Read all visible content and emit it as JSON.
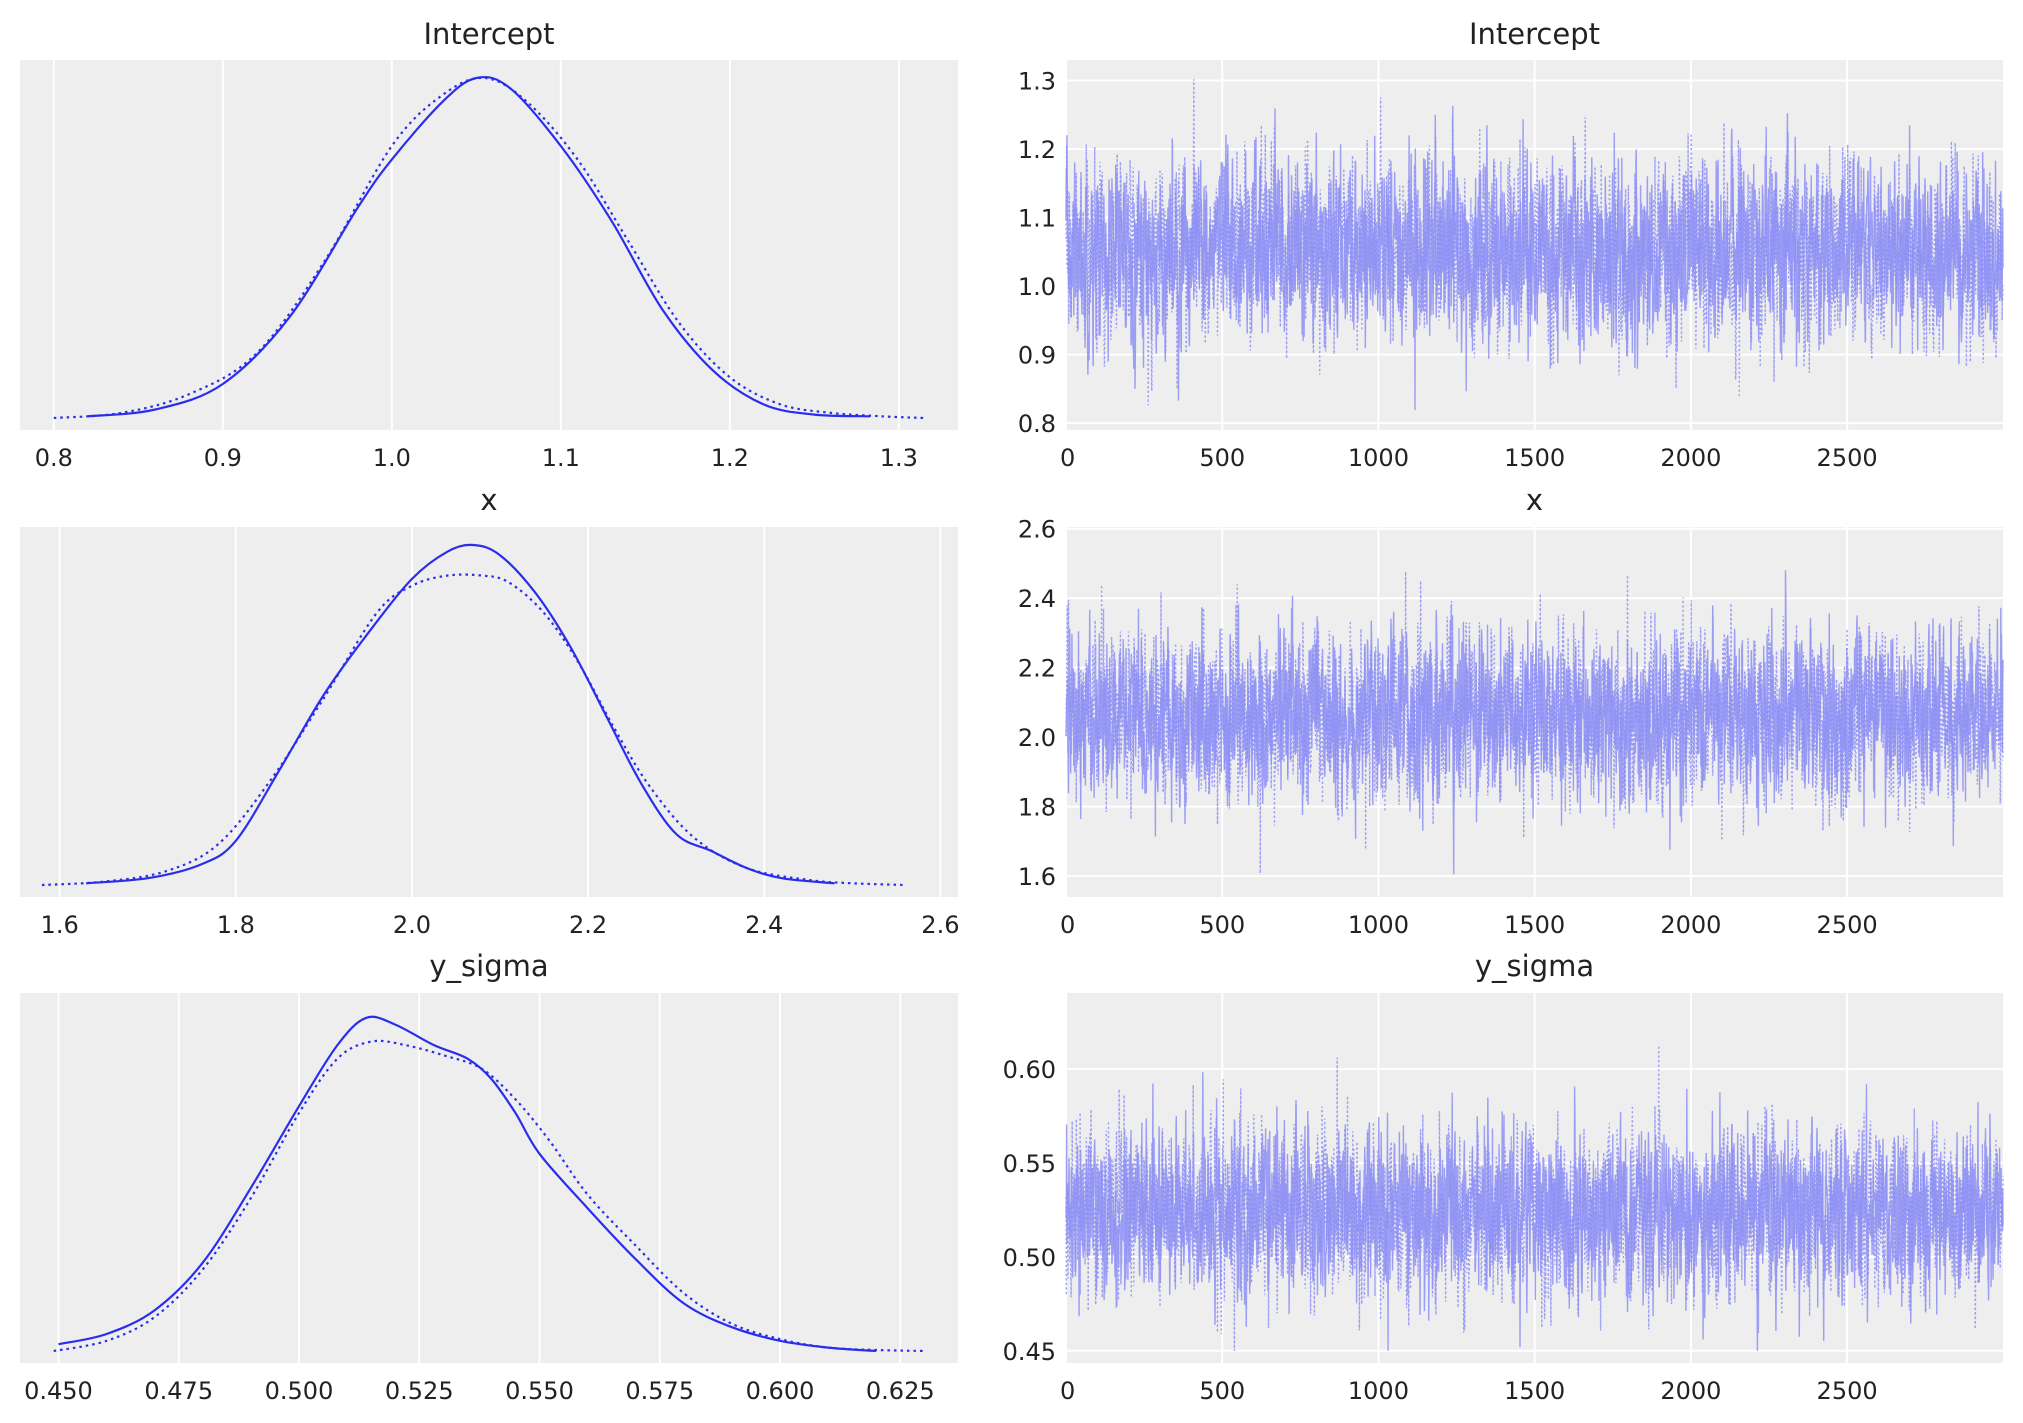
{
  "chart_data": [
    {
      "type": "line",
      "subtype": "density",
      "title": "Intercept",
      "xlim": [
        0.78,
        1.335
      ],
      "ticks": [
        "0.8",
        "0.9",
        "1.0",
        "1.1",
        "1.2",
        "1.3"
      ],
      "tick_values": [
        0.8,
        0.9,
        1.0,
        1.1,
        1.2,
        1.3
      ],
      "y_ticks_visible": false,
      "series": [
        {
          "style": "solid",
          "color": "#2a2eec",
          "x": [
            0.82,
            0.86,
            0.9,
            0.94,
            0.98,
            1.0,
            1.03,
            1.05,
            1.07,
            1.1,
            1.13,
            1.16,
            1.19,
            1.22,
            1.25,
            1.283
          ],
          "y": [
            0.005,
            0.025,
            0.1,
            0.3,
            0.62,
            0.76,
            0.93,
            1.0,
            0.97,
            0.8,
            0.58,
            0.32,
            0.14,
            0.04,
            0.01,
            0.005
          ]
        },
        {
          "style": "dotted",
          "color": "#2a2eec",
          "x": [
            0.8,
            0.84,
            0.88,
            0.92,
            0.96,
            1.0,
            1.03,
            1.055,
            1.08,
            1.11,
            1.14,
            1.17,
            1.2,
            1.23,
            1.26,
            1.29,
            1.315
          ],
          "y": [
            0.0,
            0.015,
            0.07,
            0.19,
            0.46,
            0.8,
            0.95,
            1.0,
            0.93,
            0.76,
            0.52,
            0.28,
            0.12,
            0.04,
            0.015,
            0.005,
            0.0
          ]
        }
      ]
    },
    {
      "type": "line",
      "subtype": "trace",
      "title": "Intercept",
      "xlim": [
        0,
        2999
      ],
      "ylim": [
        0.79,
        1.33
      ],
      "x_ticks": [
        "0",
        "500",
        "1000",
        "1500",
        "2000",
        "2500"
      ],
      "x_tick_values": [
        0,
        500,
        1000,
        1500,
        2000,
        2500
      ],
      "y_ticks": [
        "0.8",
        "0.9",
        "1.0",
        "1.1",
        "1.2",
        "1.3"
      ],
      "y_tick_values": [
        0.8,
        0.9,
        1.0,
        1.1,
        1.2,
        1.3
      ],
      "n_draws": 3000,
      "center": 1.05,
      "spread": 0.065,
      "range_observed": [
        0.8,
        1.31
      ],
      "series": [
        {
          "style": "solid",
          "color": "#8d8ff3"
        },
        {
          "style": "dotted",
          "color": "#8d8ff3"
        }
      ]
    },
    {
      "type": "line",
      "subtype": "density",
      "title": "x",
      "xlim": [
        1.555,
        2.62
      ],
      "ticks": [
        "1.6",
        "1.8",
        "2.0",
        "2.2",
        "2.4",
        "2.6"
      ],
      "tick_values": [
        1.6,
        1.8,
        2.0,
        2.2,
        2.4,
        2.6
      ],
      "y_ticks_visible": false,
      "series": [
        {
          "style": "solid",
          "color": "#2a2eec",
          "x": [
            1.63,
            1.7,
            1.76,
            1.8,
            1.85,
            1.9,
            1.95,
            2.0,
            2.04,
            2.07,
            2.1,
            2.14,
            2.18,
            2.22,
            2.26,
            2.3,
            2.34,
            2.38,
            2.42,
            2.48
          ],
          "y": [
            0.005,
            0.02,
            0.06,
            0.13,
            0.34,
            0.56,
            0.74,
            0.9,
            0.98,
            1.0,
            0.97,
            0.86,
            0.7,
            0.5,
            0.3,
            0.15,
            0.1,
            0.05,
            0.02,
            0.005
          ]
        },
        {
          "style": "dotted",
          "color": "#2a2eec",
          "x": [
            1.58,
            1.65,
            1.72,
            1.78,
            1.84,
            1.9,
            1.96,
            2.0,
            2.04,
            2.08,
            2.11,
            2.15,
            2.19,
            2.23,
            2.27,
            2.32,
            2.38,
            2.45,
            2.5,
            2.56
          ],
          "y": [
            0.0,
            0.01,
            0.04,
            0.12,
            0.31,
            0.55,
            0.8,
            0.88,
            0.91,
            0.91,
            0.89,
            0.8,
            0.65,
            0.46,
            0.29,
            0.14,
            0.05,
            0.015,
            0.005,
            0.0
          ]
        }
      ]
    },
    {
      "type": "line",
      "subtype": "trace",
      "title": "x",
      "xlim": [
        0,
        2999
      ],
      "ylim": [
        1.54,
        2.605
      ],
      "x_ticks": [
        "0",
        "500",
        "1000",
        "1500",
        "2000",
        "2500"
      ],
      "x_tick_values": [
        0,
        500,
        1000,
        1500,
        2000,
        2500
      ],
      "y_ticks": [
        "1.6",
        "1.8",
        "2.0",
        "2.2",
        "2.4",
        "2.6"
      ],
      "y_tick_values": [
        1.6,
        1.8,
        2.0,
        2.2,
        2.4,
        2.6
      ],
      "n_draws": 3000,
      "center": 2.06,
      "spread": 0.12,
      "range_observed": [
        1.58,
        2.56
      ],
      "series": [
        {
          "style": "solid",
          "color": "#8d8ff3"
        },
        {
          "style": "dotted",
          "color": "#8d8ff3"
        }
      ]
    },
    {
      "type": "line",
      "subtype": "density",
      "title": "y_sigma",
      "xlim": [
        0.442,
        0.637
      ],
      "ticks": [
        "0.450",
        "0.475",
        "0.500",
        "0.525",
        "0.550",
        "0.575",
        "0.600",
        "0.625"
      ],
      "tick_values": [
        0.45,
        0.475,
        0.5,
        0.525,
        0.55,
        0.575,
        0.6,
        0.625
      ],
      "y_ticks_visible": false,
      "series": [
        {
          "style": "solid",
          "color": "#2a2eec",
          "x": [
            0.45,
            0.46,
            0.47,
            0.48,
            0.49,
            0.5,
            0.508,
            0.514,
            0.52,
            0.528,
            0.535,
            0.54,
            0.545,
            0.55,
            0.56,
            0.57,
            0.58,
            0.59,
            0.6,
            0.61,
            0.62
          ],
          "y": [
            0.02,
            0.05,
            0.12,
            0.26,
            0.48,
            0.72,
            0.9,
            0.98,
            0.96,
            0.9,
            0.86,
            0.8,
            0.7,
            0.58,
            0.42,
            0.27,
            0.14,
            0.07,
            0.03,
            0.01,
            0.0
          ]
        },
        {
          "style": "dotted",
          "color": "#2a2eec",
          "x": [
            0.449,
            0.46,
            0.47,
            0.48,
            0.49,
            0.5,
            0.508,
            0.515,
            0.522,
            0.53,
            0.538,
            0.545,
            0.552,
            0.56,
            0.57,
            0.58,
            0.59,
            0.6,
            0.61,
            0.62,
            0.63
          ],
          "y": [
            0.0,
            0.03,
            0.1,
            0.24,
            0.45,
            0.7,
            0.86,
            0.91,
            0.9,
            0.87,
            0.83,
            0.74,
            0.62,
            0.46,
            0.31,
            0.17,
            0.08,
            0.035,
            0.01,
            0.003,
            0.0
          ]
        }
      ]
    },
    {
      "type": "line",
      "subtype": "trace",
      "title": "y_sigma",
      "xlim": [
        0,
        2999
      ],
      "ylim": [
        0.4435,
        0.6405
      ],
      "x_ticks": [
        "0",
        "500",
        "1000",
        "1500",
        "2000",
        "2500"
      ],
      "x_tick_values": [
        0,
        500,
        1000,
        1500,
        2000,
        2500
      ],
      "y_ticks": [
        "0.60",
        "0.55",
        "0.50",
        "0.45"
      ],
      "y_tick_values": [
        0.6,
        0.55,
        0.5,
        0.45
      ],
      "n_draws": 3000,
      "center": 0.523,
      "spread": 0.022,
      "range_observed": [
        0.45,
        0.63
      ],
      "series": [
        {
          "style": "solid",
          "color": "#8d8ff3"
        },
        {
          "style": "dotted",
          "color": "#8d8ff3"
        }
      ]
    }
  ]
}
